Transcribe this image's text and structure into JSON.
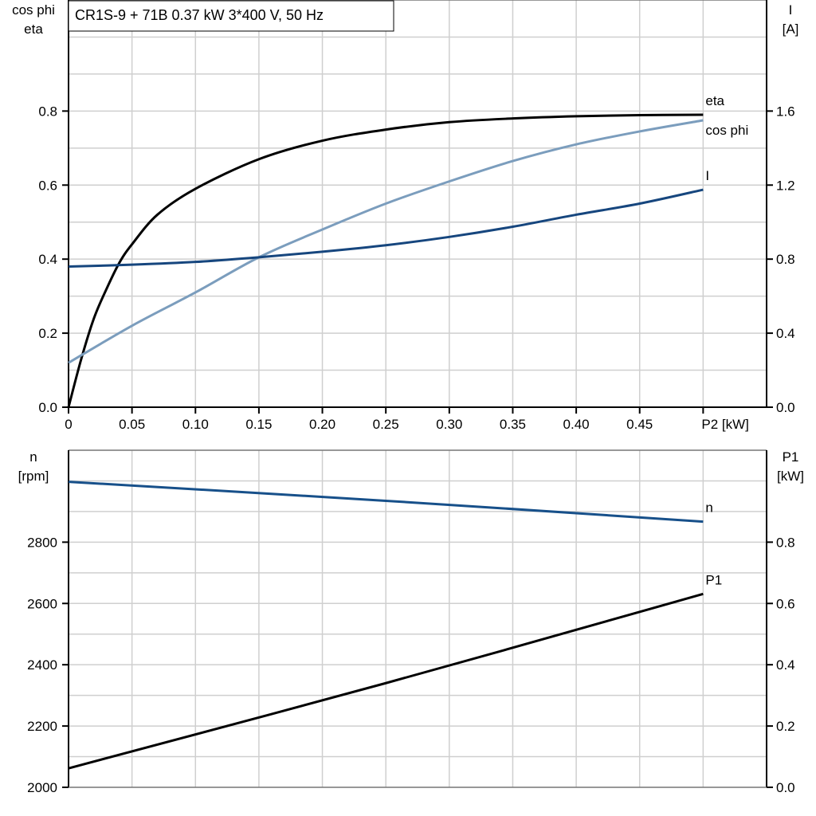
{
  "title": "CR1S-9 + 71B   0.37 kW   3*400 V, 50 Hz",
  "colors": {
    "eta": "#000000",
    "cos_phi": "#7b9dbd",
    "I": "#16467e",
    "n": "#17508a",
    "P1": "#000000",
    "grid": "#cfcfcf"
  },
  "chart_data": [
    {
      "type": "line",
      "xlabel": "P2 [kW]",
      "xlim": [
        0,
        0.55
      ],
      "xticks": [
        "0",
        "0.05",
        "0.10",
        "0.15",
        "0.20",
        "0.25",
        "0.30",
        "0.35",
        "0.40",
        "0.45"
      ],
      "xtick_values": [
        0,
        0.05,
        0.1,
        0.15,
        0.2,
        0.25,
        0.3,
        0.35,
        0.4,
        0.45
      ],
      "ylabel_left": [
        "cos phi",
        "eta"
      ],
      "ylim_left": [
        0,
        1.1
      ],
      "yticks_left": [
        "0.0",
        "0.2",
        "0.4",
        "0.6",
        "0.8"
      ],
      "ytick_left_values": [
        0,
        0.2,
        0.4,
        0.6,
        0.8
      ],
      "ylabel_right": [
        "I",
        "[A]"
      ],
      "ylim_right": [
        0,
        2.2
      ],
      "yticks_right": [
        "0.0",
        "0.4",
        "0.8",
        "1.2",
        "1.6"
      ],
      "ytick_right_values": [
        0,
        0.4,
        0.8,
        1.2,
        1.6
      ],
      "grid": true,
      "series": [
        {
          "name": "eta",
          "axis": "left",
          "x": [
            0,
            0.01,
            0.02,
            0.03,
            0.04,
            0.05,
            0.07,
            0.1,
            0.15,
            0.2,
            0.25,
            0.3,
            0.35,
            0.4,
            0.45,
            0.5
          ],
          "y": [
            0,
            0.13,
            0.24,
            0.32,
            0.39,
            0.44,
            0.52,
            0.59,
            0.67,
            0.72,
            0.75,
            0.77,
            0.78,
            0.786,
            0.789,
            0.79
          ]
        },
        {
          "name": "cos phi",
          "axis": "left",
          "x": [
            0,
            0.05,
            0.1,
            0.15,
            0.2,
            0.25,
            0.3,
            0.35,
            0.4,
            0.45,
            0.5
          ],
          "y": [
            0.12,
            0.22,
            0.31,
            0.405,
            0.48,
            0.55,
            0.61,
            0.665,
            0.71,
            0.745,
            0.775
          ]
        },
        {
          "name": "I",
          "axis": "right",
          "x": [
            0,
            0.05,
            0.1,
            0.15,
            0.2,
            0.25,
            0.3,
            0.35,
            0.4,
            0.45,
            0.5
          ],
          "y": [
            0.76,
            0.77,
            0.785,
            0.81,
            0.84,
            0.875,
            0.92,
            0.975,
            1.04,
            1.1,
            1.175
          ]
        }
      ]
    },
    {
      "type": "line",
      "xlim": [
        0,
        0.55
      ],
      "ylabel_left": [
        "n",
        "[rpm]"
      ],
      "ylim_left": [
        2000,
        3100
      ],
      "yticks_left": [
        "2000",
        "2200",
        "2400",
        "2600",
        "2800"
      ],
      "ytick_left_values": [
        2000,
        2200,
        2400,
        2600,
        2800
      ],
      "ylabel_right": [
        "P1",
        "[kW]"
      ],
      "ylim_right": [
        0,
        1.1
      ],
      "yticks_right": [
        "0.0",
        "0.2",
        "0.4",
        "0.6",
        "0.8"
      ],
      "ytick_right_values": [
        0,
        0.2,
        0.4,
        0.6,
        0.8
      ],
      "grid": true,
      "series": [
        {
          "name": "n",
          "axis": "left",
          "x": [
            0,
            0.25,
            0.5
          ],
          "y": [
            2997,
            2935,
            2867
          ]
        },
        {
          "name": "P1",
          "axis": "right",
          "x": [
            0,
            0.25,
            0.5
          ],
          "y": [
            0.062,
            0.34,
            0.631
          ]
        }
      ]
    }
  ]
}
